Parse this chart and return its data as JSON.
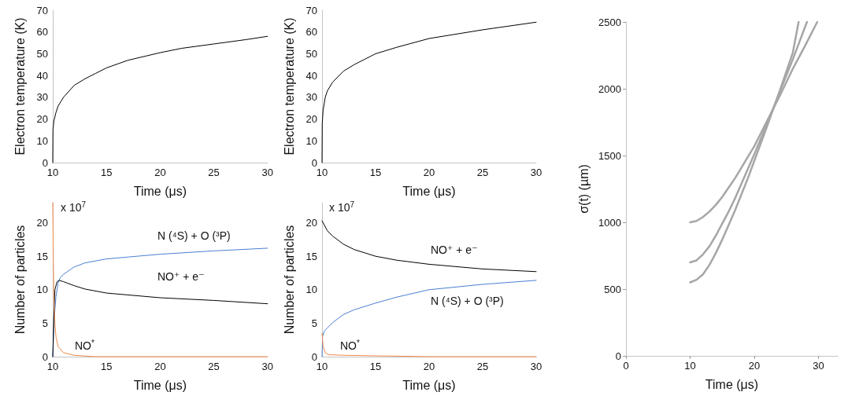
{
  "chart_data": [
    {
      "type": "line",
      "xlabel": "Time (μs)",
      "ylabel": "Electron temperature (K)",
      "xlim": [
        10,
        30
      ],
      "xticks": [
        10,
        15,
        20,
        25,
        30
      ],
      "ylim": [
        0,
        70
      ],
      "yticks": [
        0,
        10,
        20,
        30,
        40,
        50,
        60,
        70
      ],
      "series": [
        {
          "color": "#000000",
          "x": [
            10,
            10.02,
            10.1,
            10.3,
            10.5,
            11,
            12,
            13,
            14,
            15,
            17,
            20,
            22,
            25,
            28,
            30
          ],
          "values": [
            0,
            15,
            19,
            23,
            26,
            30,
            35.5,
            38.5,
            41,
            43.5,
            47,
            50.5,
            52.5,
            54.5,
            56.5,
            58
          ]
        }
      ]
    },
    {
      "type": "line",
      "xlabel": "Time (μs)",
      "ylabel": "Electron temperature (K)",
      "xlim": [
        10,
        30
      ],
      "xticks": [
        10,
        15,
        20,
        25,
        30
      ],
      "ylim": [
        0,
        70
      ],
      "yticks": [
        0,
        10,
        20,
        30,
        40,
        50,
        60,
        70
      ],
      "series": [
        {
          "color": "#000000",
          "x": [
            10,
            10.02,
            10.1,
            10.3,
            10.5,
            11,
            12,
            13,
            15,
            17,
            20,
            25,
            30
          ],
          "values": [
            0,
            18,
            24,
            30,
            33,
            37,
            42,
            45,
            50,
            53,
            57,
            61,
            64.5
          ]
        }
      ]
    },
    {
      "type": "line",
      "xlabel": "Time (μs)",
      "ylabel": "Number of particles",
      "xlim": [
        10,
        30
      ],
      "xticks": [
        10,
        15,
        20,
        25,
        30
      ],
      "ylim": [
        0,
        23
      ],
      "yticks": [
        0,
        5,
        10,
        15,
        20
      ],
      "series": [
        {
          "color": "#4a7fd4",
          "x": [
            10,
            10.1,
            10.2,
            10.3,
            10.5,
            10.7,
            11,
            12,
            13,
            15,
            20,
            25,
            30
          ],
          "values": [
            0,
            4,
            7,
            9,
            11,
            11.8,
            12.3,
            13.4,
            14,
            14.6,
            15.3,
            15.8,
            16.2
          ]
        },
        {
          "color": "#000000",
          "x": [
            10,
            10.1,
            10.2,
            10.4,
            10.6,
            11,
            12,
            13,
            15,
            20,
            25,
            30
          ],
          "values": [
            0,
            6,
            10,
            11.2,
            11.4,
            11.2,
            10.6,
            10.1,
            9.5,
            8.8,
            8.4,
            7.9
          ]
        },
        {
          "color": "#f08a4b",
          "x": [
            10,
            10.05,
            10.1,
            10.2,
            10.3,
            10.5,
            11,
            12,
            14,
            20,
            30
          ],
          "values": [
            23,
            15,
            9,
            5,
            3,
            1.5,
            0.6,
            0.2,
            0,
            0,
            0
          ]
        }
      ],
      "annotations": [
        "x 10$^{7}$",
        "N (⁴S) + O (³P)",
        "NO⁺ + e⁻",
        "NO$^{*}$"
      ]
    },
    {
      "type": "line",
      "xlabel": "Time (μs)",
      "ylabel": "Number of particles",
      "xlim": [
        10,
        30
      ],
      "xticks": [
        10,
        15,
        20,
        25,
        30
      ],
      "ylim": [
        0,
        23
      ],
      "yticks": [
        0,
        5,
        10,
        15,
        20
      ],
      "series": [
        {
          "color": "#000000",
          "x": [
            10,
            10.5,
            11,
            12,
            13,
            15,
            17,
            20,
            25,
            30
          ],
          "values": [
            20.3,
            18.8,
            18,
            16.8,
            16,
            15,
            14.4,
            13.8,
            13.1,
            12.7
          ]
        },
        {
          "color": "#4a7fd4",
          "x": [
            10,
            10.05,
            10.2,
            10.5,
            11,
            12,
            13,
            15,
            17,
            20,
            25,
            30
          ],
          "values": [
            0,
            3,
            3.8,
            4.3,
            5.1,
            6.3,
            7,
            8,
            8.9,
            10,
            10.8,
            11.4
          ]
        },
        {
          "color": "#f08a4b",
          "x": [
            10,
            10.1,
            10.3,
            10.6,
            12,
            20,
            30
          ],
          "values": [
            3.5,
            1.5,
            0.6,
            0.3,
            0.2,
            0,
            0
          ]
        }
      ],
      "annotations": [
        "x 10$^{7}$",
        "NO⁺ + e⁻",
        "N (⁴S) + O (³P)",
        "NO$^{*}$"
      ]
    },
    {
      "type": "line",
      "xlabel": "Time (μs)",
      "ylabel": "σ(t) (µm)",
      "xlim": [
        0,
        33
      ],
      "xticks": [
        0,
        10,
        20,
        30
      ],
      "ylim": [
        0,
        2500
      ],
      "yticks": [
        0,
        500,
        1000,
        1500,
        2000,
        2500
      ],
      "series": [
        {
          "color": "#a6a6a6",
          "x": [
            10,
            11,
            12,
            13,
            14,
            15,
            16,
            17,
            18,
            19,
            20,
            22,
            24,
            26,
            28,
            29.8
          ],
          "values": [
            1000,
            1010,
            1040,
            1080,
            1130,
            1190,
            1260,
            1330,
            1410,
            1490,
            1570,
            1760,
            1950,
            2150,
            2330,
            2500
          ]
        },
        {
          "color": "#a6a6a6",
          "x": [
            10,
            11,
            12,
            13,
            14,
            15,
            16,
            17,
            18,
            19,
            20,
            22,
            24,
            26,
            28.2
          ],
          "values": [
            700,
            715,
            760,
            820,
            900,
            990,
            1080,
            1180,
            1290,
            1400,
            1510,
            1740,
            1980,
            2220,
            2500
          ]
        },
        {
          "color": "#a6a6a6",
          "x": [
            10,
            11,
            12,
            13,
            14,
            15,
            16,
            17,
            18,
            19,
            20,
            22,
            24,
            26,
            26.9
          ],
          "values": [
            550,
            570,
            610,
            680,
            770,
            870,
            980,
            1090,
            1210,
            1330,
            1460,
            1720,
            1990,
            2270,
            2500
          ]
        }
      ]
    }
  ]
}
